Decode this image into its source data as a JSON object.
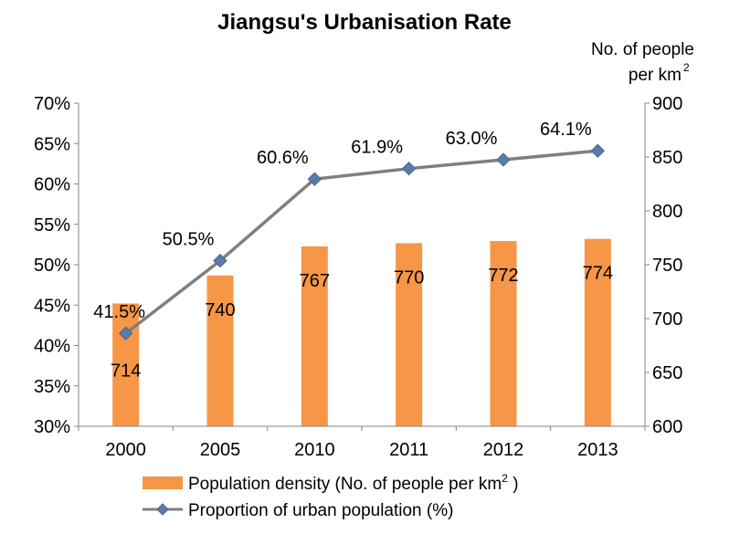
{
  "chart_data": {
    "type": "bar+line",
    "title": "Jiangsu's Urbanisation Rate",
    "categories": [
      "2000",
      "2005",
      "2010",
      "2011",
      "2012",
      "2013"
    ],
    "series": [
      {
        "name": "Population density (No. of people per km² )",
        "type": "bar",
        "axis": "right",
        "values": [
          714,
          740,
          767,
          770,
          772,
          774
        ],
        "data_labels": [
          "714",
          "740",
          "767",
          "770",
          "772",
          "774"
        ],
        "color": "#F79646"
      },
      {
        "name": "Proportion of urban population (%)",
        "type": "line",
        "axis": "left",
        "values": [
          41.5,
          50.5,
          60.6,
          61.9,
          63.0,
          64.1
        ],
        "data_labels": [
          "41.5%",
          "50.5%",
          "60.6%",
          "61.9%",
          "63.0%",
          "64.1%"
        ],
        "color": "#7F7F7F",
        "marker_color": "#4F6A98"
      }
    ],
    "y_left": {
      "ylim": [
        30,
        70
      ],
      "ticks": [
        30,
        35,
        40,
        45,
        50,
        55,
        60,
        65,
        70
      ],
      "tick_labels": [
        "30%",
        "35%",
        "40%",
        "45%",
        "50%",
        "55%",
        "60%",
        "65%",
        "70%"
      ]
    },
    "y_right": {
      "title_line1": "No. of people",
      "title_line2": "per km",
      "title_sup": "2",
      "ylim": [
        600,
        900
      ],
      "ticks": [
        600,
        650,
        700,
        750,
        800,
        850,
        900
      ],
      "tick_labels": [
        "600",
        "650",
        "700",
        "750",
        "800",
        "850",
        "900"
      ]
    },
    "legend": {
      "position": "bottom",
      "bar_label_main": "Population density (No. of people per km",
      "bar_label_sup": "2",
      "bar_label_end": " )",
      "line_label": "Proportion of urban population (%)"
    }
  }
}
